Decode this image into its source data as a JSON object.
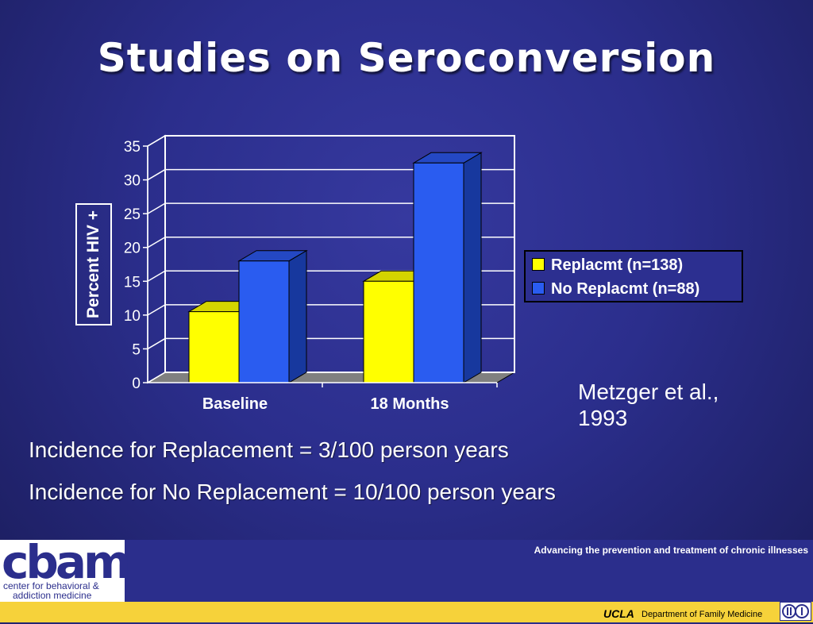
{
  "slide": {
    "title": "Studies on Seroconversion"
  },
  "chart_data": {
    "type": "bar",
    "categories": [
      "Baseline",
      "18 Months"
    ],
    "series": [
      {
        "name": "Replacmt (n=138)",
        "values": [
          10.5,
          15
        ],
        "color": "#ffff00"
      },
      {
        "name": "No Replacmt (n=88)",
        "values": [
          18,
          32.5
        ],
        "color": "#2a5cf0"
      }
    ],
    "ylabel": "Percent HIV +",
    "ylim": [
      0,
      35
    ],
    "yticks": [
      0,
      5,
      10,
      15,
      20,
      25,
      30,
      35
    ],
    "grid": true,
    "legend": "right",
    "style": "3d"
  },
  "citation": {
    "line1": "Metzger et al.,",
    "line2": "1993"
  },
  "incidence": [
    "Incidence for Replacement = 3/100 person years",
    "Incidence for No Replacement = 10/100 person years"
  ],
  "footer": {
    "logo_text": "cbam",
    "logo_sub1": "center for behavioral &",
    "logo_sub2": "addiction medicine",
    "tagline": "Advancing the prevention and treatment of chronic illnesses",
    "ucla": "UCLA",
    "department": "Department of Family Medicine"
  }
}
